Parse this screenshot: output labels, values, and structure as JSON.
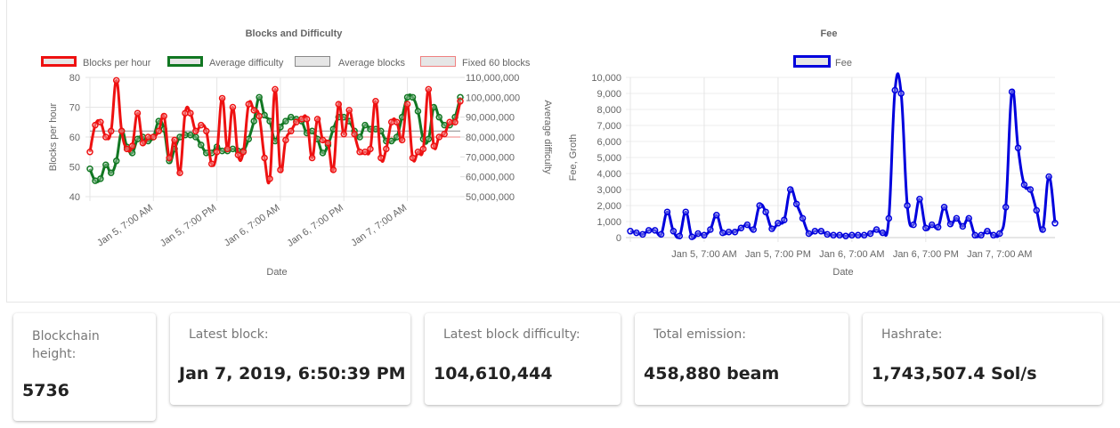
{
  "chart_data": [
    {
      "type": "line",
      "title": "Blocks and Difficulty",
      "xlabel": "Date",
      "ylabel": "Blocks per hour",
      "y2label": "Average difficulty",
      "ylim": [
        40,
        80
      ],
      "y2lim": [
        50000000,
        110000000
      ],
      "yticks": [
        "80",
        "70",
        "60",
        "50",
        "40"
      ],
      "y2ticks": [
        "110,000,000",
        "100,000,000",
        "90,000,000",
        "80,000,000",
        "70,000,000",
        "60,000,000",
        "50,000,000"
      ],
      "xticks": [
        {
          "label": "Jan 5, 7:00 AM",
          "hour": 12
        },
        {
          "label": "Jan 5, 7:00 PM",
          "hour": 24
        },
        {
          "label": "Jan 6, 7:00 AM",
          "hour": 36
        },
        {
          "label": "Jan 6, 7:00 PM",
          "hour": 48
        },
        {
          "label": "Jan 7, 7:00 AM",
          "hour": 60
        }
      ],
      "legend_position": "top",
      "grid": true,
      "series": [
        {
          "name": "Blocks per hour",
          "color": "#ee1111",
          "axis": "left",
          "values": [
            55,
            64,
            65,
            60,
            62,
            79,
            62,
            56,
            57,
            68,
            58,
            60,
            60,
            62,
            67,
            53,
            59,
            48,
            68,
            68,
            62,
            64,
            62,
            51,
            55,
            73,
            56,
            70,
            54,
            55,
            71,
            69,
            67,
            53,
            46,
            76,
            49,
            59,
            62,
            65,
            66,
            66,
            53,
            66,
            59,
            58,
            49,
            71,
            61,
            69,
            61,
            55,
            55,
            56,
            72,
            53,
            56,
            65,
            65,
            59,
            71,
            53,
            55,
            56,
            76,
            57,
            60,
            61,
            65,
            65,
            72
          ]
        },
        {
          "name": "Average difficulty",
          "color": "#117722",
          "axis": "right",
          "values": [
            64,
            58,
            59,
            66,
            62,
            68,
            83,
            75,
            72,
            79,
            80,
            78,
            80,
            88,
            84,
            68,
            74,
            80,
            81,
            81,
            80,
            76,
            72,
            72,
            75,
            73,
            73,
            74,
            73,
            73,
            79,
            88,
            100,
            91,
            88,
            78,
            85,
            88,
            90,
            89,
            88,
            82,
            83,
            79,
            72,
            76,
            84,
            90,
            90,
            88,
            83,
            80,
            86,
            84,
            84,
            83,
            78,
            78,
            80,
            90,
            100,
            100,
            93,
            79,
            79,
            95,
            90,
            86,
            86,
            90,
            100
          ]
        },
        {
          "name": "Average blocks",
          "color": "#888888",
          "axis": "left",
          "constant": 62
        },
        {
          "name": "Fixed 60 blocks",
          "color": "#f08080",
          "axis": "left",
          "constant": 60
        }
      ]
    },
    {
      "type": "line",
      "title": "Fee",
      "xlabel": "Date",
      "ylabel": "Fee, Groth",
      "ylim": [
        0,
        10000
      ],
      "yticks": [
        "10,000",
        "9,000",
        "8,000",
        "7,000",
        "6,000",
        "5,000",
        "4,000",
        "3,000",
        "2,000",
        "1,000",
        "0"
      ],
      "xticks": [
        {
          "label": "Jan 5, 7:00 AM",
          "hour": 12
        },
        {
          "label": "Jan 5, 7:00 PM",
          "hour": 24
        },
        {
          "label": "Jan 6, 7:00 AM",
          "hour": 36
        },
        {
          "label": "Jan 6, 7:00 PM",
          "hour": 48
        },
        {
          "label": "Jan 7, 7:00 AM",
          "hour": 60
        }
      ],
      "legend_position": "top",
      "grid": true,
      "series": [
        {
          "name": "Fee",
          "color": "#0000dd",
          "values": [
            400,
            300,
            200,
            450,
            450,
            200,
            1600,
            400,
            100,
            1600,
            50,
            250,
            150,
            500,
            1400,
            300,
            350,
            350,
            600,
            800,
            500,
            2000,
            1600,
            550,
            900,
            1100,
            3000,
            2100,
            1200,
            250,
            400,
            400,
            200,
            150,
            150,
            100,
            150,
            150,
            150,
            250,
            500,
            300,
            1200,
            9200,
            9000,
            2000,
            800,
            2400,
            600,
            800,
            650,
            1900,
            850,
            1200,
            700,
            1200,
            150,
            150,
            400,
            150,
            250,
            1900,
            9100,
            5600,
            3300,
            3000,
            1700,
            500,
            3800,
            900
          ]
        }
      ]
    }
  ],
  "cards": [
    {
      "label": "Blockchain height:",
      "value": "5736"
    },
    {
      "label": "Latest block:",
      "value": "Jan 7, 2019, 6:50:39 PM"
    },
    {
      "label": "Latest block difficulty:",
      "value": "104,610,444"
    },
    {
      "label": "Total emission:",
      "value": "458,880 beam"
    },
    {
      "label": "Hashrate:",
      "value": "1,743,507.4 Sol/s"
    }
  ]
}
